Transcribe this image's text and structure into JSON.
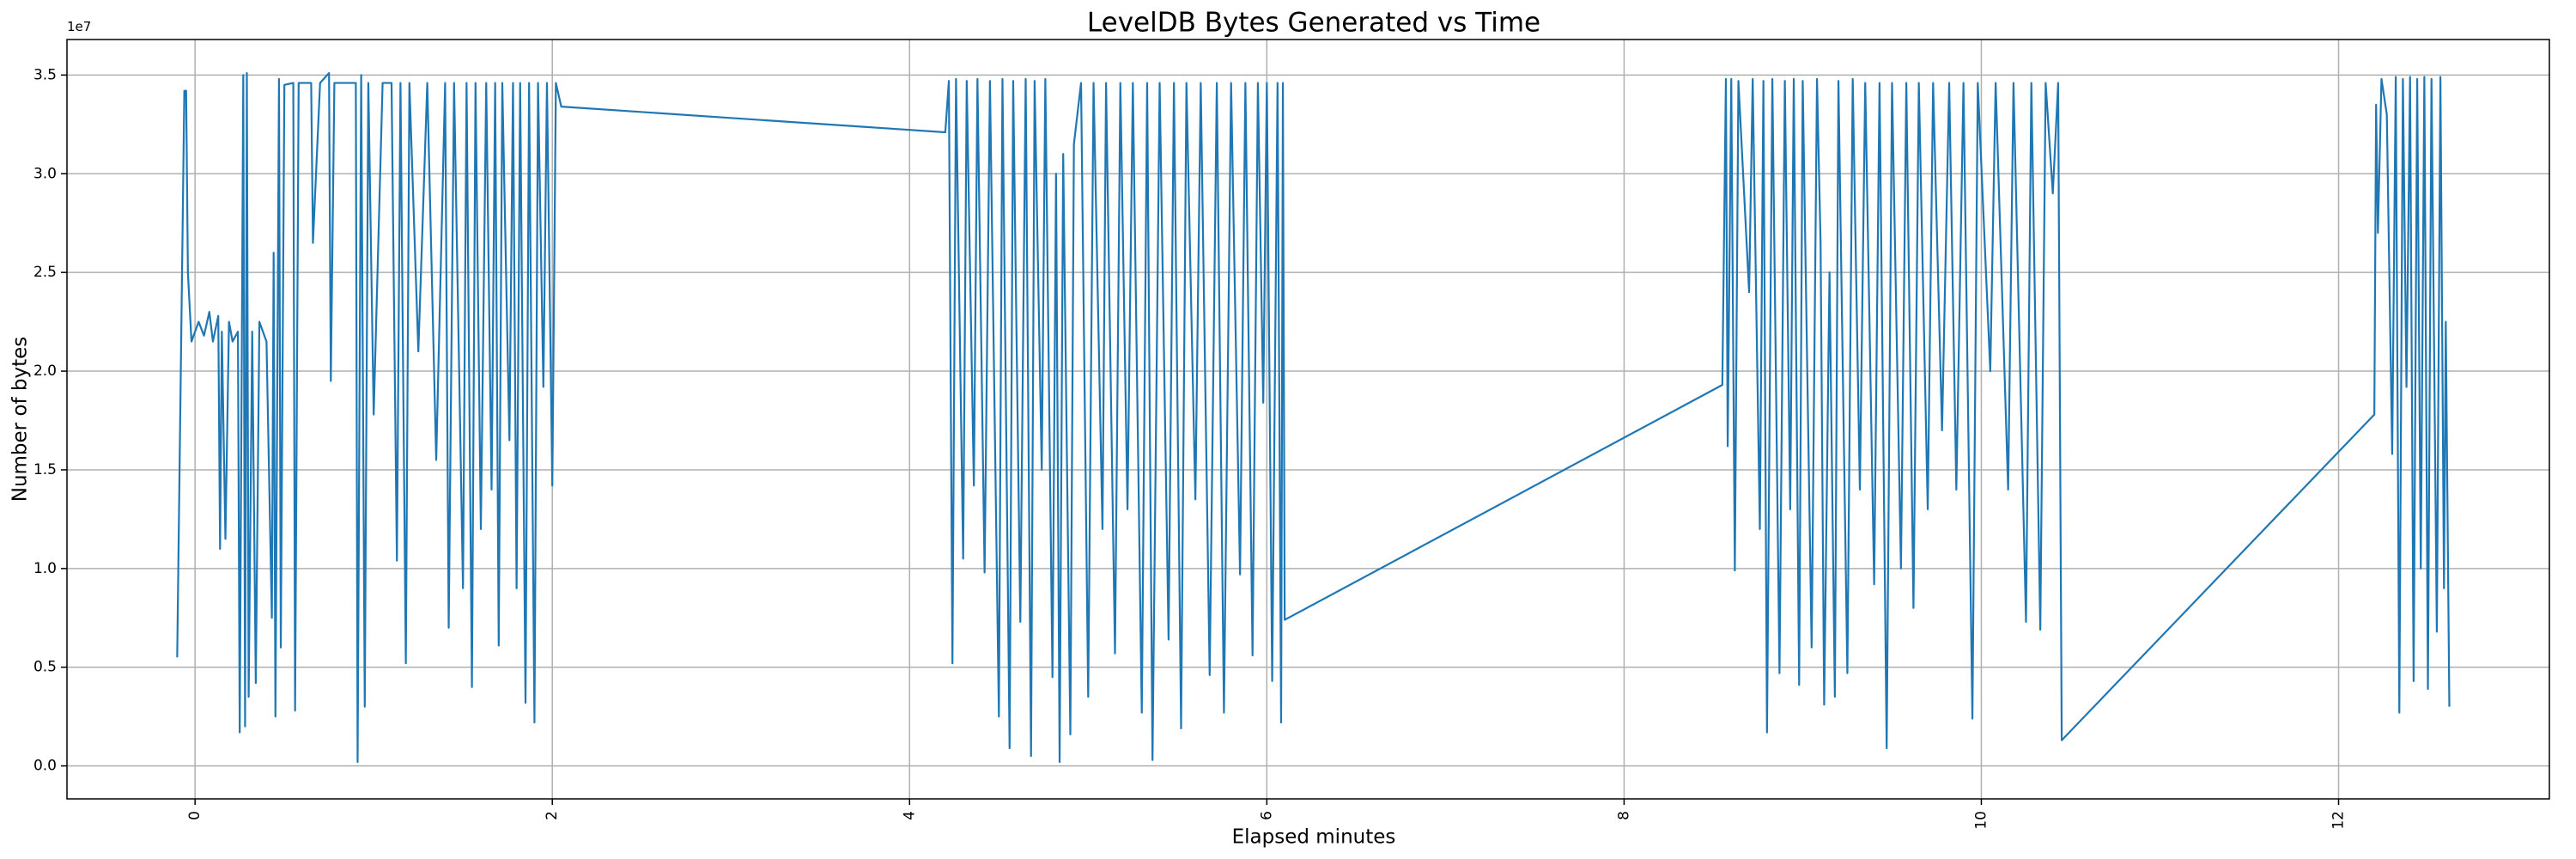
{
  "chart_data": {
    "type": "line",
    "title": "LevelDB Bytes Generated vs Time",
    "x_label": "Elapsed minutes",
    "y_label": "Number of bytes",
    "y_offset_label": "1e7",
    "color": "#1f77b4",
    "grid": true,
    "xlim": [
      -0.717,
      13.18
    ],
    "ylim": [
      -1670000,
      36800000
    ],
    "xticks": [
      0,
      2,
      4,
      6,
      8,
      10,
      12
    ],
    "yticks": [
      {
        "value": 0,
        "label": "0.0"
      },
      {
        "value": 5000000,
        "label": "0.5"
      },
      {
        "value": 10000000,
        "label": "1.0"
      },
      {
        "value": 15000000,
        "label": "1.5"
      },
      {
        "value": 20000000,
        "label": "2.0"
      },
      {
        "value": 25000000,
        "label": "2.5"
      },
      {
        "value": 30000000,
        "label": "3.0"
      },
      {
        "value": 35000000,
        "label": "3.5"
      }
    ],
    "x": [
      -0.1,
      -0.06,
      -0.05,
      -0.04,
      -0.02,
      0.02,
      0.05,
      0.08,
      0.1,
      0.13,
      0.14,
      0.15,
      0.17,
      0.19,
      0.21,
      0.24,
      0.25,
      0.27,
      0.28,
      0.29,
      0.3,
      0.32,
      0.34,
      0.36,
      0.4,
      0.43,
      0.44,
      0.45,
      0.47,
      0.48,
      0.5,
      0.55,
      0.56,
      0.58,
      0.65,
      0.66,
      0.7,
      0.75,
      0.76,
      0.78,
      0.85,
      0.9,
      0.91,
      0.93,
      0.95,
      0.97,
      1.0,
      1.05,
      1.1,
      1.13,
      1.15,
      1.18,
      1.2,
      1.25,
      1.3,
      1.35,
      1.4,
      1.42,
      1.45,
      1.5,
      1.52,
      1.55,
      1.57,
      1.6,
      1.63,
      1.66,
      1.68,
      1.7,
      1.72,
      1.76,
      1.78,
      1.8,
      1.82,
      1.85,
      1.87,
      1.9,
      1.92,
      1.95,
      1.97,
      2.0,
      2.02,
      2.05,
      4.2,
      4.22,
      4.24,
      4.26,
      4.3,
      4.32,
      4.36,
      4.38,
      4.42,
      4.45,
      4.5,
      4.52,
      4.56,
      4.58,
      4.62,
      4.65,
      4.68,
      4.7,
      4.74,
      4.76,
      4.8,
      4.82,
      4.84,
      4.86,
      4.9,
      4.92,
      4.96,
      5.0,
      5.03,
      5.08,
      5.1,
      5.15,
      5.18,
      5.22,
      5.25,
      5.3,
      5.33,
      5.36,
      5.4,
      5.45,
      5.48,
      5.52,
      5.55,
      5.6,
      5.63,
      5.68,
      5.72,
      5.76,
      5.8,
      5.85,
      5.88,
      5.92,
      5.95,
      5.98,
      6.0,
      6.03,
      6.06,
      6.08,
      6.09,
      6.1,
      8.55,
      8.57,
      8.58,
      8.6,
      8.62,
      8.64,
      8.7,
      8.72,
      8.76,
      8.78,
      8.8,
      8.83,
      8.87,
      8.9,
      8.93,
      8.95,
      8.98,
      9.0,
      9.05,
      9.08,
      9.1,
      9.12,
      9.15,
      9.18,
      9.2,
      9.25,
      9.28,
      9.32,
      9.35,
      9.4,
      9.43,
      9.47,
      9.5,
      9.55,
      9.58,
      9.62,
      9.65,
      9.7,
      9.73,
      9.78,
      9.82,
      9.86,
      9.9,
      9.95,
      9.98,
      10.05,
      10.08,
      10.15,
      10.18,
      10.25,
      10.28,
      10.33,
      10.36,
      10.4,
      10.43,
      10.45,
      12.2,
      12.21,
      12.22,
      12.24,
      12.27,
      12.3,
      12.32,
      12.34,
      12.36,
      12.38,
      12.4,
      12.42,
      12.44,
      12.46,
      12.48,
      12.5,
      12.52,
      12.55,
      12.57,
      12.59,
      12.6,
      12.62
    ],
    "values": [
      5500000,
      34200000,
      34200000,
      25000000,
      21500000,
      22500000,
      21800000,
      23000000,
      21500000,
      22800000,
      11000000,
      22000000,
      11500000,
      22500000,
      21500000,
      22000000,
      1700000,
      35000000,
      2000000,
      35100000,
      3500000,
      22000000,
      4200000,
      22500000,
      21500000,
      7500000,
      26000000,
      2500000,
      34800000,
      6000000,
      34500000,
      34600000,
      2800000,
      34600000,
      34600000,
      26500000,
      34600000,
      35100000,
      19500000,
      34600000,
      34600000,
      34600000,
      200000,
      35000000,
      3000000,
      34600000,
      17800000,
      34600000,
      34600000,
      10400000,
      34600000,
      5200000,
      34600000,
      21000000,
      34600000,
      15500000,
      34600000,
      7000000,
      34600000,
      9000000,
      34600000,
      4000000,
      34600000,
      12000000,
      34600000,
      14000000,
      34600000,
      6100000,
      34600000,
      16500000,
      34600000,
      9000000,
      34600000,
      3200000,
      34600000,
      2200000,
      34600000,
      19200000,
      34600000,
      14200000,
      34600000,
      33400000,
      32100000,
      34700000,
      5200000,
      34800000,
      10500000,
      34700000,
      14200000,
      34800000,
      9800000,
      34700000,
      2500000,
      34800000,
      900000,
      34700000,
      7300000,
      34800000,
      500000,
      34700000,
      15000000,
      34800000,
      4500000,
      30000000,
      200000,
      31000000,
      1600000,
      31500000,
      34600000,
      3500000,
      34600000,
      12000000,
      34600000,
      5700000,
      34600000,
      13000000,
      34600000,
      2700000,
      34600000,
      300000,
      34600000,
      6400000,
      34600000,
      1900000,
      34600000,
      13500000,
      34600000,
      4600000,
      34600000,
      2700000,
      34600000,
      9700000,
      34600000,
      5600000,
      34600000,
      18400000,
      34600000,
      4300000,
      34600000,
      2200000,
      34600000,
      7400000,
      19300000,
      34800000,
      16200000,
      34800000,
      9900000,
      34700000,
      24000000,
      34800000,
      12000000,
      34700000,
      1700000,
      34800000,
      4700000,
      34700000,
      13000000,
      34800000,
      4100000,
      34700000,
      6000000,
      34800000,
      26500000,
      3100000,
      25000000,
      3500000,
      34700000,
      4700000,
      34800000,
      14000000,
      34600000,
      9200000,
      34600000,
      900000,
      34600000,
      10000000,
      34600000,
      8000000,
      34600000,
      13000000,
      34600000,
      17000000,
      34600000,
      14000000,
      34600000,
      2400000,
      34600000,
      20000000,
      34600000,
      14000000,
      34600000,
      7300000,
      34600000,
      6900000,
      34600000,
      29000000,
      34600000,
      1300000,
      17800000,
      33500000,
      27000000,
      34800000,
      33000000,
      15800000,
      34900000,
      2700000,
      34800000,
      19200000,
      34900000,
      4300000,
      34800000,
      10000000,
      34900000,
      3900000,
      34800000,
      6800000,
      34900000,
      9000000,
      22500000,
      3000000
    ]
  }
}
